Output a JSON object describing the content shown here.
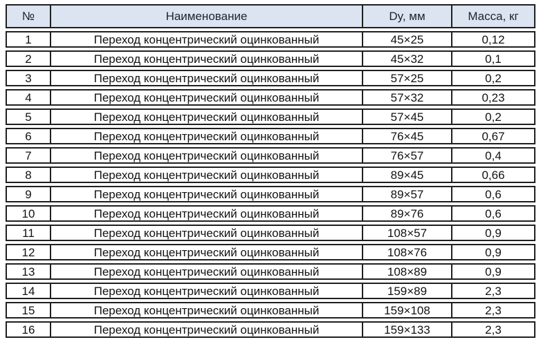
{
  "colors": {
    "header_bg": "#dbe4f0",
    "border": "#1f1f1f",
    "text": "#121212",
    "header_text": "#1c2430",
    "page_bg": "#ffffff"
  },
  "table": {
    "columns": [
      {
        "key": "num",
        "label": "№"
      },
      {
        "key": "name",
        "label": "Наименование"
      },
      {
        "key": "dy",
        "label": "Dy, мм"
      },
      {
        "key": "mass",
        "label": "Масса, кг"
      }
    ],
    "rows": [
      {
        "num": "1",
        "name": "Переход концентрический оцинкованный",
        "dy": "45×25",
        "mass": "0,12"
      },
      {
        "num": "2",
        "name": "Переход концентрический оцинкованный",
        "dy": "45×32",
        "mass": "0,1"
      },
      {
        "num": "3",
        "name": "Переход концентрический оцинкованный",
        "dy": "57×25",
        "mass": "0,2"
      },
      {
        "num": "4",
        "name": "Переход концентрический оцинкованный",
        "dy": "57×32",
        "mass": "0,23"
      },
      {
        "num": "5",
        "name": "Переход концентрический оцинкованный",
        "dy": "57×45",
        "mass": "0,2"
      },
      {
        "num": "6",
        "name": "Переход концентрический оцинкованный",
        "dy": "76×45",
        "mass": "0,67"
      },
      {
        "num": "7",
        "name": "Переход концентрический оцинкованный",
        "dy": "76×57",
        "mass": "0,4"
      },
      {
        "num": "8",
        "name": "Переход концентрический оцинкованный",
        "dy": "89×45",
        "mass": "0,66"
      },
      {
        "num": "9",
        "name": "Переход концентрический оцинкованный",
        "dy": "89×57",
        "mass": "0,6"
      },
      {
        "num": "10",
        "name": "Переход концентрический оцинкованный",
        "dy": "89×76",
        "mass": "0,6"
      },
      {
        "num": "11",
        "name": "Переход концентрический оцинкованный",
        "dy": "108×57",
        "mass": "0,9"
      },
      {
        "num": "12",
        "name": "Переход концентрический оцинкованный",
        "dy": "108×76",
        "mass": "0,9"
      },
      {
        "num": "13",
        "name": "Переход концентрический оцинкованный",
        "dy": "108×89",
        "mass": "0,9"
      },
      {
        "num": "14",
        "name": "Переход концентрический оцинкованный",
        "dy": "159×89",
        "mass": "2,3"
      },
      {
        "num": "15",
        "name": "Переход концентрический оцинкованный",
        "dy": "159×108",
        "mass": "2,3"
      },
      {
        "num": "16",
        "name": "Переход концентрический оцинкованный",
        "dy": "159×133",
        "mass": "2,3"
      }
    ]
  }
}
